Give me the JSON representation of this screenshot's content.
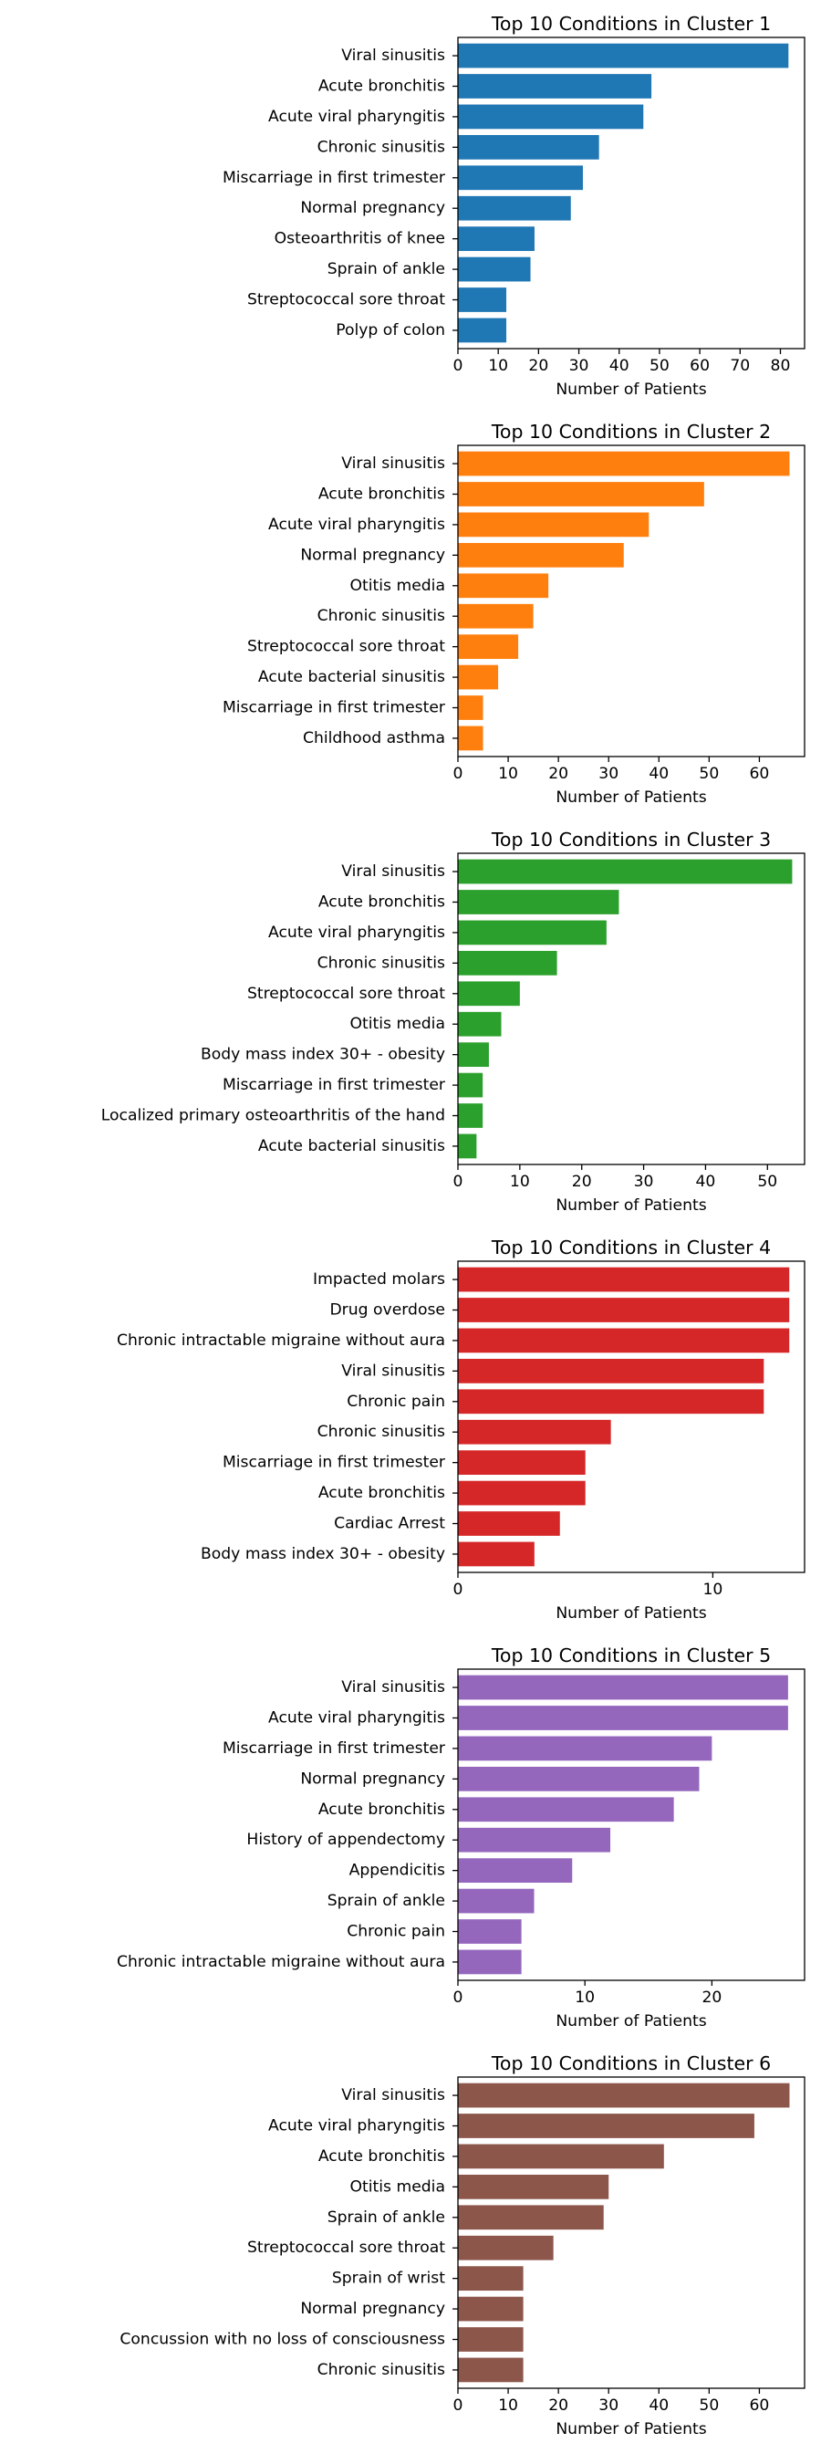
{
  "chart_data": [
    {
      "type": "bar",
      "orientation": "horizontal",
      "title": "Top 10 Conditions in Cluster 1",
      "xlabel": "Number of Patients",
      "ylabel": "",
      "color": "#1f77b4",
      "xlim": [
        0,
        86
      ],
      "xticks": [
        0,
        10,
        20,
        30,
        40,
        50,
        60,
        70,
        80
      ],
      "categories": [
        "Viral sinusitis",
        "Acute bronchitis",
        "Acute viral pharyngitis",
        "Chronic sinusitis",
        "Miscarriage in first trimester",
        "Normal pregnancy",
        "Osteoarthritis of knee",
        "Sprain of ankle",
        "Streptococcal sore throat",
        "Polyp of colon"
      ],
      "values": [
        82,
        48,
        46,
        35,
        31,
        28,
        19,
        18,
        12,
        12
      ]
    },
    {
      "type": "bar",
      "orientation": "horizontal",
      "title": "Top 10 Conditions in Cluster 2",
      "xlabel": "Number of Patients",
      "ylabel": "",
      "color": "#ff7f0e",
      "xlim": [
        0,
        69
      ],
      "xticks": [
        0,
        10,
        20,
        30,
        40,
        50,
        60
      ],
      "categories": [
        "Viral sinusitis",
        "Acute bronchitis",
        "Acute viral pharyngitis",
        "Normal pregnancy",
        "Otitis media",
        "Chronic sinusitis",
        "Streptococcal sore throat",
        "Acute bacterial sinusitis",
        "Miscarriage in first trimester",
        "Childhood asthma"
      ],
      "values": [
        66,
        49,
        38,
        33,
        18,
        15,
        12,
        8,
        5,
        5
      ]
    },
    {
      "type": "bar",
      "orientation": "horizontal",
      "title": "Top 10 Conditions in Cluster 3",
      "xlabel": "Number of Patients",
      "ylabel": "",
      "color": "#2ca02c",
      "xlim": [
        0,
        56
      ],
      "xticks": [
        0,
        10,
        20,
        30,
        40,
        50
      ],
      "categories": [
        "Viral sinusitis",
        "Acute bronchitis",
        "Acute viral pharyngitis",
        "Chronic sinusitis",
        "Streptococcal sore throat",
        "Otitis media",
        "Body mass index 30+ - obesity",
        "Miscarriage in first trimester",
        "Localized  primary osteoarthritis of the hand",
        "Acute bacterial sinusitis"
      ],
      "values": [
        54,
        26,
        24,
        16,
        10,
        7,
        5,
        4,
        4,
        3
      ]
    },
    {
      "type": "bar",
      "orientation": "horizontal",
      "title": "Top 10 Conditions in Cluster 4",
      "xlabel": "Number of Patients",
      "ylabel": "",
      "color": "#d62728",
      "xlim": [
        0,
        13.6
      ],
      "xticks": [
        0,
        10
      ],
      "categories": [
        "Impacted molars",
        "Drug overdose",
        "Chronic intractable migraine without aura",
        "Viral sinusitis",
        "Chronic pain",
        "Chronic sinusitis",
        "Miscarriage in first trimester",
        "Acute bronchitis",
        "Cardiac Arrest",
        "Body mass index 30+ - obesity"
      ],
      "values": [
        13,
        13,
        13,
        12,
        12,
        6,
        5,
        5,
        4,
        3
      ]
    },
    {
      "type": "bar",
      "orientation": "horizontal",
      "title": "Top 10 Conditions in Cluster 5",
      "xlabel": "Number of Patients",
      "ylabel": "",
      "color": "#9467bd",
      "xlim": [
        0,
        27.3
      ],
      "xticks": [
        0,
        10,
        20
      ],
      "categories": [
        "Viral sinusitis",
        "Acute viral pharyngitis",
        "Miscarriage in first trimester",
        "Normal pregnancy",
        "Acute bronchitis",
        "History of appendectomy",
        "Appendicitis",
        "Sprain of ankle",
        "Chronic pain",
        "Chronic intractable migraine without aura"
      ],
      "values": [
        26,
        26,
        20,
        19,
        17,
        12,
        9,
        6,
        5,
        5
      ]
    },
    {
      "type": "bar",
      "orientation": "horizontal",
      "title": "Top 10 Conditions in Cluster 6",
      "xlabel": "Number of Patients",
      "ylabel": "",
      "color": "#8c564b",
      "xlim": [
        0,
        69
      ],
      "xticks": [
        0,
        10,
        20,
        30,
        40,
        50,
        60
      ],
      "categories": [
        "Viral sinusitis",
        "Acute viral pharyngitis",
        "Acute bronchitis",
        "Otitis media",
        "Sprain of ankle",
        "Streptococcal sore throat",
        "Sprain of wrist",
        "Normal pregnancy",
        "Concussion with no loss of consciousness",
        "Chronic sinusitis"
      ],
      "values": [
        66,
        59,
        41,
        30,
        29,
        19,
        13,
        13,
        13,
        13
      ]
    }
  ]
}
